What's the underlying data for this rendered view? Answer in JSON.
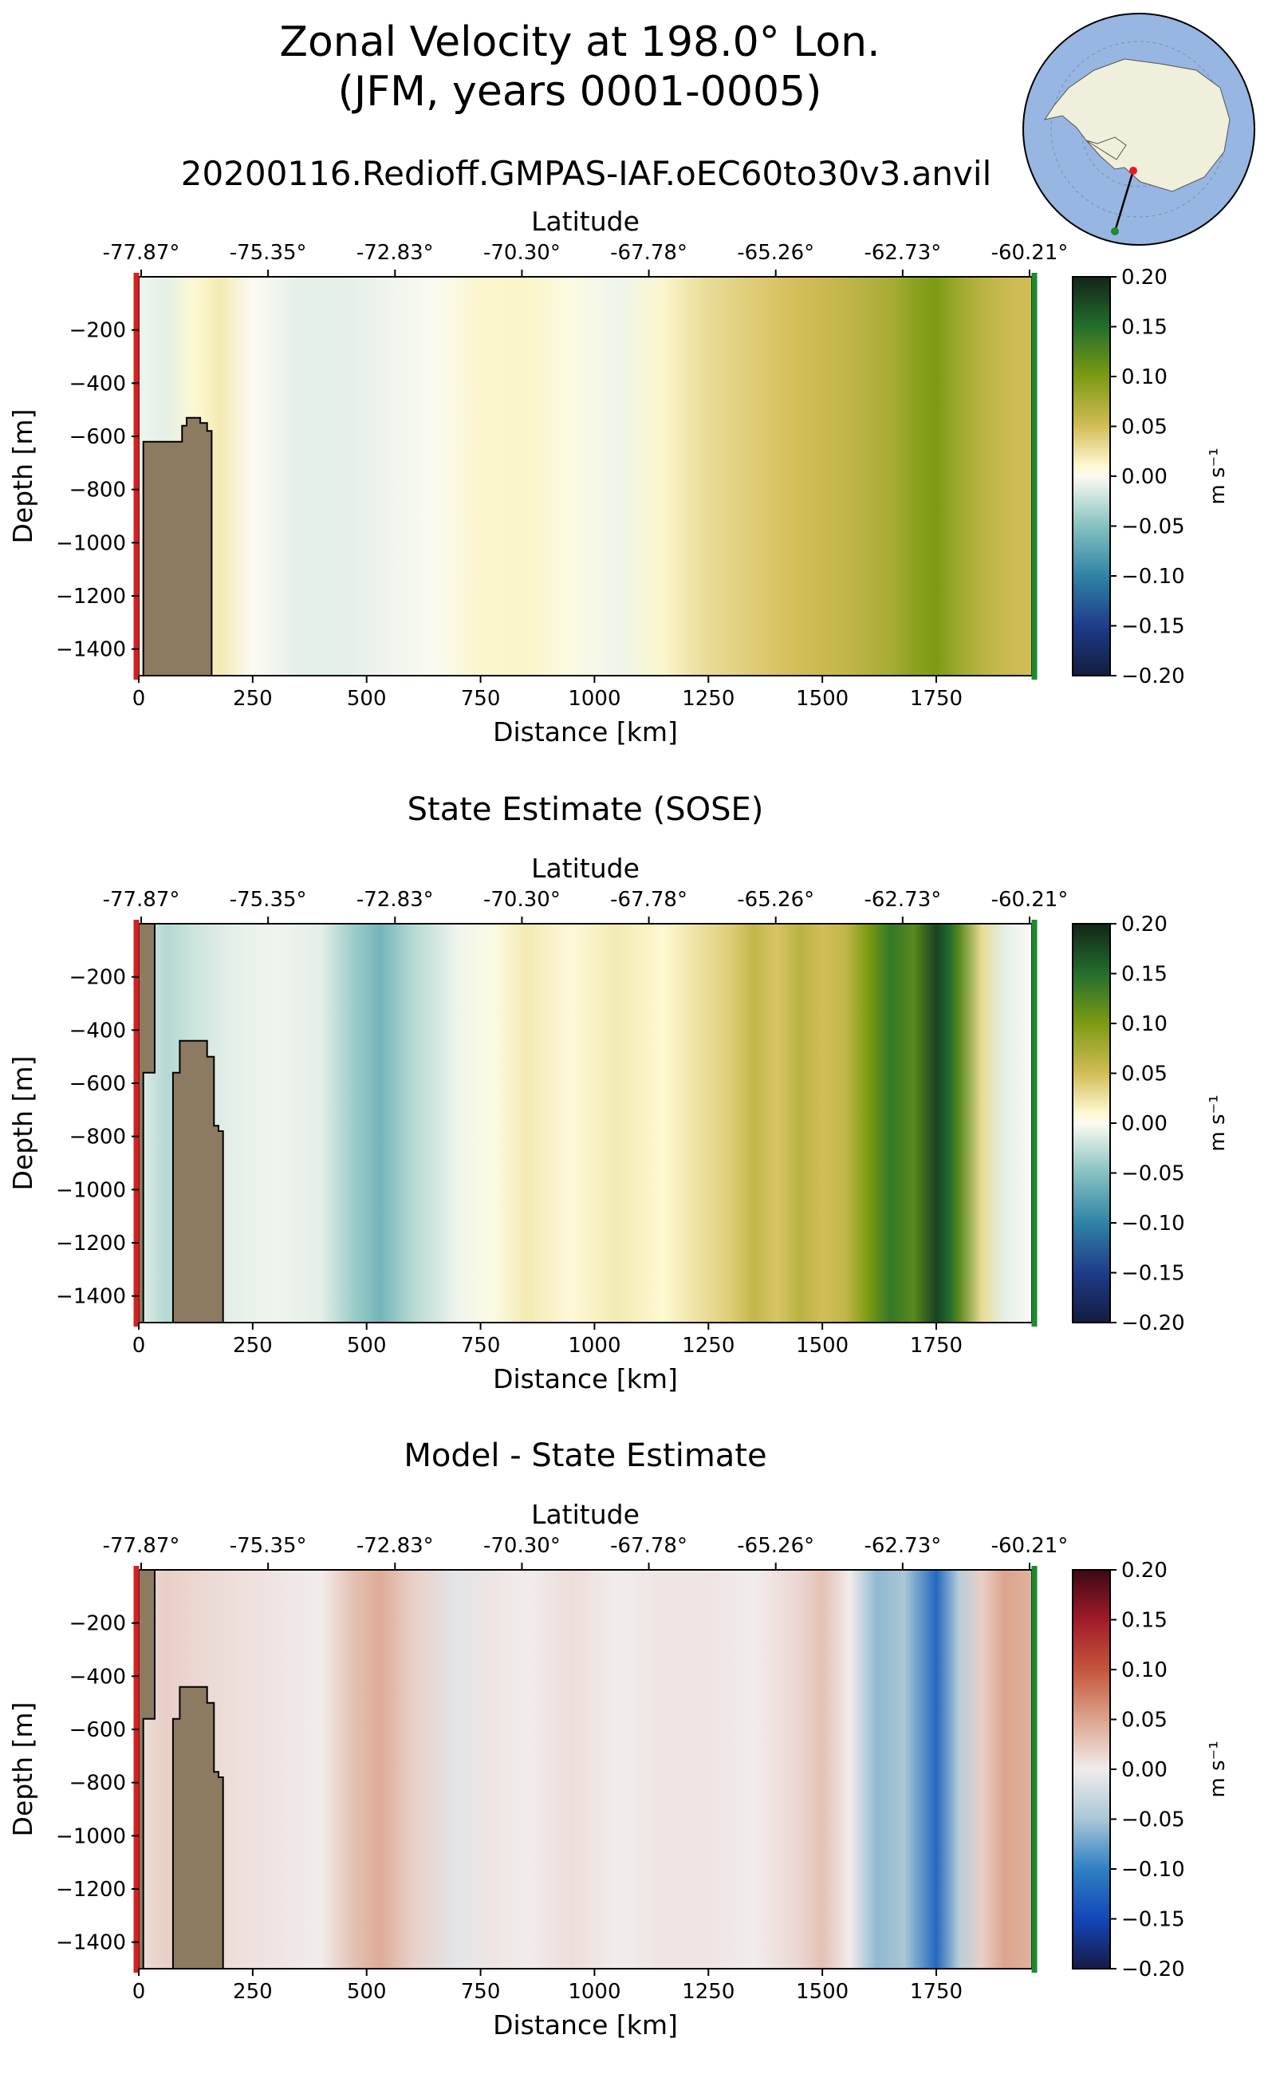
{
  "figure": {
    "title_line1": "Zonal Velocity at 198.0° Lon.",
    "title_line2": "(JFM, years 0001-0005)",
    "run_name": "20200116.Redioff.GMPAS-IAF.oEC60to30v3.anvil",
    "inset_map": {
      "description_icon": "antarctica-polar-map-icon",
      "ocean_color": "#97b6e1",
      "land_color": "#efefdb"
    }
  },
  "colors": {
    "seafloor": "#8c7b60",
    "start_marker": "#d42020",
    "end_marker": "#1d8a2e"
  },
  "chart_data": [
    {
      "type": "heatmap",
      "title": "",
      "xlabel": "Distance [km]",
      "ylabel": "Depth [m]",
      "top_xlabel": "Latitude",
      "xlim": [
        0,
        1960
      ],
      "ylim": [
        -1500,
        0
      ],
      "xticks": [
        0,
        250,
        500,
        750,
        1000,
        1250,
        1500,
        1750
      ],
      "yticks": [
        -200,
        -400,
        -600,
        -800,
        -1000,
        -1200,
        -1400
      ],
      "lat_ticks": [
        "-77.87°",
        "-75.35°",
        "-72.83°",
        "-70.30°",
        "-67.78°",
        "-65.26°",
        "-62.73°",
        "-60.21°"
      ],
      "colorbar": {
        "label": "m s⁻¹",
        "colormap": "delta",
        "ticks": [
          "0.20",
          "0.15",
          "0.10",
          "0.05",
          "0.00",
          "−0.05",
          "−0.10",
          "−0.15",
          "−0.20"
        ],
        "range": [
          -0.2,
          0.2
        ]
      },
      "velocity_profile": {
        "distance_km": [
          0,
          60,
          120,
          180,
          250,
          350,
          450,
          550,
          650,
          750,
          850,
          950,
          1050,
          1150,
          1250,
          1350,
          1450,
          1550,
          1650,
          1700,
          1750,
          1800,
          1850,
          1900,
          1960
        ],
        "velocity_ms": [
          -0.005,
          -0.01,
          0.01,
          0.02,
          0.0,
          -0.01,
          -0.01,
          -0.005,
          0.0,
          0.012,
          0.013,
          0.005,
          -0.005,
          0.012,
          0.03,
          0.04,
          0.05,
          0.06,
          0.075,
          0.09,
          0.1,
          0.08,
          0.065,
          0.055,
          0.05
        ]
      },
      "seafloor_profile": {
        "distance_km": [
          0,
          10,
          10,
          95,
          95,
          105,
          105,
          135,
          135,
          150,
          150,
          160,
          160,
          0
        ],
        "depth_m": [
          -1500,
          -1500,
          -620,
          -620,
          -560,
          -560,
          -530,
          -530,
          -550,
          -550,
          -580,
          -580,
          -1500,
          -1500
        ]
      }
    },
    {
      "type": "heatmap",
      "title": "State Estimate (SOSE)",
      "xlabel": "Distance [km]",
      "ylabel": "Depth [m]",
      "top_xlabel": "Latitude",
      "xlim": [
        0,
        1960
      ],
      "ylim": [
        -1500,
        0
      ],
      "xticks": [
        0,
        250,
        500,
        750,
        1000,
        1250,
        1500,
        1750
      ],
      "yticks": [
        -200,
        -400,
        -600,
        -800,
        -1000,
        -1200,
        -1400
      ],
      "lat_ticks": [
        "-77.87°",
        "-75.35°",
        "-72.83°",
        "-70.30°",
        "-67.78°",
        "-65.26°",
        "-62.73°",
        "-60.21°"
      ],
      "colorbar": {
        "label": "m s⁻¹",
        "colormap": "delta",
        "ticks": [
          "0.20",
          "0.15",
          "0.10",
          "0.05",
          "0.00",
          "−0.05",
          "−0.10",
          "−0.15",
          "−0.20"
        ],
        "range": [
          -0.2,
          0.2
        ]
      },
      "velocity_profile": {
        "distance_km": [
          0,
          60,
          120,
          200,
          300,
          400,
          470,
          530,
          600,
          700,
          780,
          850,
          950,
          1050,
          1150,
          1250,
          1300,
          1350,
          1400,
          1450,
          1500,
          1550,
          1600,
          1650,
          1700,
          1750,
          1780,
          1800,
          1850,
          1900,
          1960
        ],
        "velocity_ms": [
          -0.01,
          -0.03,
          -0.02,
          -0.01,
          -0.005,
          -0.01,
          -0.04,
          -0.06,
          -0.03,
          -0.005,
          0.005,
          0.02,
          0.008,
          0.02,
          0.01,
          0.03,
          0.04,
          0.06,
          0.045,
          0.065,
          0.05,
          0.06,
          0.1,
          0.14,
          0.12,
          0.18,
          0.15,
          0.12,
          0.03,
          -0.01,
          0.0
        ]
      },
      "seafloor_profile": {
        "distance_km": [
          0,
          35,
          35,
          10,
          10,
          75,
          75,
          90,
          90,
          150,
          150,
          165,
          165,
          175,
          175,
          185,
          185,
          0
        ],
        "depth_m": [
          0,
          0,
          -560,
          -560,
          -1500,
          -1500,
          -560,
          -560,
          -440,
          -440,
          -500,
          -500,
          -760,
          -760,
          -780,
          -780,
          -1500,
          -1500
        ]
      }
    },
    {
      "type": "heatmap",
      "title": "Model - State Estimate",
      "xlabel": "Distance [km]",
      "ylabel": "Depth [m]",
      "top_xlabel": "Latitude",
      "xlim": [
        0,
        1960
      ],
      "ylim": [
        -1500,
        0
      ],
      "xticks": [
        0,
        250,
        500,
        750,
        1000,
        1250,
        1500,
        1750
      ],
      "yticks": [
        -200,
        -400,
        -600,
        -800,
        -1000,
        -1200,
        -1400
      ],
      "lat_ticks": [
        "-77.87°",
        "-75.35°",
        "-72.83°",
        "-70.30°",
        "-67.78°",
        "-65.26°",
        "-62.73°",
        "-60.21°"
      ],
      "colorbar": {
        "label": "m s⁻¹",
        "colormap": "balance",
        "ticks": [
          "0.20",
          "0.15",
          "0.10",
          "0.05",
          "0.00",
          "−0.05",
          "−0.10",
          "−0.15",
          "−0.20"
        ],
        "range": [
          -0.2,
          0.2
        ]
      },
      "velocity_profile": {
        "distance_km": [
          0,
          60,
          120,
          200,
          300,
          400,
          470,
          530,
          600,
          700,
          780,
          850,
          950,
          1050,
          1150,
          1250,
          1350,
          1450,
          1500,
          1560,
          1620,
          1680,
          1750,
          1800,
          1850,
          1900,
          1960
        ],
        "velocity_ms": [
          0.01,
          0.02,
          0.015,
          0.01,
          0.005,
          0.0,
          0.03,
          0.045,
          0.02,
          -0.01,
          0.005,
          0.0,
          0.01,
          0.0,
          0.005,
          0.005,
          0.0,
          0.015,
          0.03,
          0.0,
          -0.06,
          -0.05,
          -0.12,
          -0.04,
          0.02,
          0.05,
          0.04
        ]
      },
      "seafloor_profile": {
        "distance_km": [
          0,
          35,
          35,
          10,
          10,
          75,
          75,
          90,
          90,
          150,
          150,
          165,
          165,
          175,
          175,
          185,
          185,
          0
        ],
        "depth_m": [
          0,
          0,
          -560,
          -560,
          -1500,
          -1500,
          -560,
          -560,
          -440,
          -440,
          -500,
          -500,
          -760,
          -760,
          -780,
          -780,
          -1500,
          -1500
        ]
      }
    }
  ]
}
